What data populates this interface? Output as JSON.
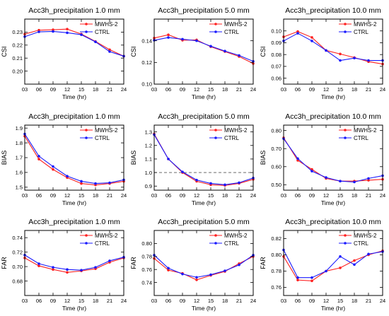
{
  "figure": {
    "colors": {
      "mwhs2": "#ff2020",
      "ctrl": "#1a1aff",
      "axis": "#000000",
      "refline": "#555555"
    },
    "shared_x": {
      "values": [
        3,
        6,
        9,
        12,
        15,
        18,
        21,
        24
      ],
      "tick_labels": [
        "03",
        "06",
        "09",
        "12",
        "15",
        "18",
        "21",
        "24"
      ],
      "label": "Time (hr)"
    }
  },
  "chart_data": [
    {
      "type": "line",
      "title": "Acc3h_precipitation 1.0 mm",
      "ylabel": "CSI",
      "ylim": [
        0.19,
        0.24
      ],
      "yticks": [
        0.2,
        0.21,
        0.22,
        0.23
      ],
      "ytick_labels": [
        "0.20",
        "0.21",
        "0.22",
        "0.23"
      ],
      "legend": "top-right",
      "reference_line": null,
      "series": [
        {
          "name": "MWHS-2",
          "values": [
            0.2285,
            0.2315,
            0.2318,
            0.2323,
            0.2285,
            0.2228,
            0.2165,
            0.2115
          ]
        },
        {
          "name": "CTRL",
          "values": [
            0.2265,
            0.2302,
            0.2305,
            0.2295,
            0.228,
            0.2225,
            0.215,
            0.2115
          ]
        }
      ]
    },
    {
      "type": "line",
      "title": "Acc3h_precipitation 5.0 mm",
      "ylabel": "CSI",
      "ylim": [
        0.1,
        0.16
      ],
      "yticks": [
        0.1,
        0.12,
        0.14
      ],
      "ytick_labels": [
        "0.10",
        "0.12",
        "0.14"
      ],
      "legend": "top-right",
      "reference_line": null,
      "series": [
        {
          "name": "MWHS-2",
          "values": [
            0.1425,
            0.1455,
            0.1405,
            0.1408,
            0.1345,
            0.13,
            0.1255,
            0.119
          ]
        },
        {
          "name": "CTRL",
          "values": [
            0.1405,
            0.143,
            0.1415,
            0.14,
            0.135,
            0.1305,
            0.1265,
            0.121
          ]
        }
      ]
    },
    {
      "type": "line",
      "title": "Acc3h_precipitation 10.0 mm",
      "ylabel": "CSI",
      "ylim": [
        0.055,
        0.11
      ],
      "yticks": [
        0.06,
        0.07,
        0.08,
        0.09,
        0.1
      ],
      "ytick_labels": [
        "0.06",
        "0.07",
        "0.08",
        "0.09",
        "0.10"
      ],
      "legend": "top-right",
      "reference_line": null,
      "series": [
        {
          "name": "MWHS-2",
          "values": [
            0.095,
            0.0995,
            0.0945,
            0.0835,
            0.0805,
            0.0775,
            0.074,
            0.072
          ]
        },
        {
          "name": "CTRL",
          "values": [
            0.0915,
            0.098,
            0.0915,
            0.0835,
            0.075,
            0.077,
            0.075,
            0.075
          ]
        }
      ]
    },
    {
      "type": "line",
      "title": "Acc3h_precipitation 1.0 mm",
      "ylabel": "BIAS",
      "ylim": [
        1.48,
        1.92
      ],
      "yticks": [
        1.5,
        1.6,
        1.7,
        1.8,
        1.9
      ],
      "ytick_labels": [
        "1.5",
        "1.6",
        "1.7",
        "1.8",
        "1.9"
      ],
      "legend": "top-right",
      "reference_line": null,
      "series": [
        {
          "name": "MWHS-2",
          "values": [
            1.845,
            1.69,
            1.62,
            1.565,
            1.525,
            1.515,
            1.525,
            1.54
          ]
        },
        {
          "name": "CTRL",
          "values": [
            1.86,
            1.71,
            1.64,
            1.575,
            1.54,
            1.525,
            1.53,
            1.55
          ]
        }
      ]
    },
    {
      "type": "line",
      "title": "Acc3h_precipitation 5.0 mm",
      "ylabel": "BIAS",
      "ylim": [
        0.87,
        1.35
      ],
      "yticks": [
        0.9,
        1.0,
        1.1,
        1.2,
        1.3
      ],
      "ytick_labels": [
        "0.9",
        "1.0",
        "1.1",
        "1.2",
        "1.3"
      ],
      "legend": "top-right",
      "reference_line": 1.0,
      "series": [
        {
          "name": "MWHS-2",
          "values": [
            1.285,
            1.1,
            1.0,
            0.935,
            0.91,
            0.905,
            0.92,
            0.95
          ]
        },
        {
          "name": "CTRL",
          "values": [
            1.28,
            1.1,
            1.005,
            0.945,
            0.92,
            0.91,
            0.925,
            0.96
          ]
        }
      ]
    },
    {
      "type": "line",
      "title": "Acc3h_precipitation 10.0 mm",
      "ylabel": "BIAS",
      "ylim": [
        0.47,
        0.83
      ],
      "yticks": [
        0.5,
        0.6,
        0.7,
        0.8
      ],
      "ytick_labels": [
        "0.50",
        "0.60",
        "0.70",
        "0.80"
      ],
      "legend": "top-right",
      "reference_line": null,
      "series": [
        {
          "name": "MWHS-2",
          "values": [
            0.76,
            0.635,
            0.585,
            0.535,
            0.52,
            0.52,
            0.525,
            0.53
          ]
        },
        {
          "name": "CTRL",
          "values": [
            0.755,
            0.645,
            0.575,
            0.54,
            0.52,
            0.515,
            0.535,
            0.55
          ]
        }
      ]
    },
    {
      "type": "line",
      "title": "Acc3h_precipitation 1.0 mm",
      "ylabel": "FAR",
      "ylim": [
        0.66,
        0.75
      ],
      "yticks": [
        0.68,
        0.7,
        0.72,
        0.74
      ],
      "ytick_labels": [
        "0.68",
        "0.70",
        "0.72",
        "0.74"
      ],
      "legend": "top-right",
      "reference_line": null,
      "series": [
        {
          "name": "MWHS-2",
          "values": [
            0.712,
            0.701,
            0.696,
            0.692,
            0.694,
            0.697,
            0.706,
            0.712
          ]
        },
        {
          "name": "CTRL",
          "values": [
            0.716,
            0.704,
            0.699,
            0.696,
            0.695,
            0.699,
            0.708,
            0.713
          ]
        }
      ]
    },
    {
      "type": "line",
      "title": "Acc3h_precipitation 5.0 mm",
      "ylabel": "FAR",
      "ylim": [
        0.72,
        0.82
      ],
      "yticks": [
        0.74,
        0.76,
        0.78,
        0.8
      ],
      "ytick_labels": [
        "0.74",
        "0.76",
        "0.78",
        "0.80"
      ],
      "legend": "top-right",
      "reference_line": null,
      "series": [
        {
          "name": "MWHS-2",
          "values": [
            0.777,
            0.759,
            0.754,
            0.744,
            0.751,
            0.757,
            0.769,
            0.78
          ]
        },
        {
          "name": "CTRL",
          "values": [
            0.782,
            0.762,
            0.753,
            0.748,
            0.752,
            0.758,
            0.767,
            0.782
          ]
        }
      ]
    },
    {
      "type": "line",
      "title": "Acc3h_precipitation 10.0 mm",
      "ylabel": "FAR",
      "ylim": [
        0.75,
        0.83
      ],
      "yticks": [
        0.76,
        0.78,
        0.8,
        0.82
      ],
      "ytick_labels": [
        "0.76",
        "0.78",
        "0.80",
        "0.82"
      ],
      "legend": "top-right",
      "reference_line": null,
      "series": [
        {
          "name": "MWHS-2",
          "values": [
            0.798,
            0.769,
            0.768,
            0.78,
            0.784,
            0.793,
            0.8,
            0.805
          ]
        },
        {
          "name": "CTRL",
          "values": [
            0.806,
            0.772,
            0.772,
            0.78,
            0.798,
            0.788,
            0.801,
            0.804
          ]
        }
      ]
    }
  ]
}
